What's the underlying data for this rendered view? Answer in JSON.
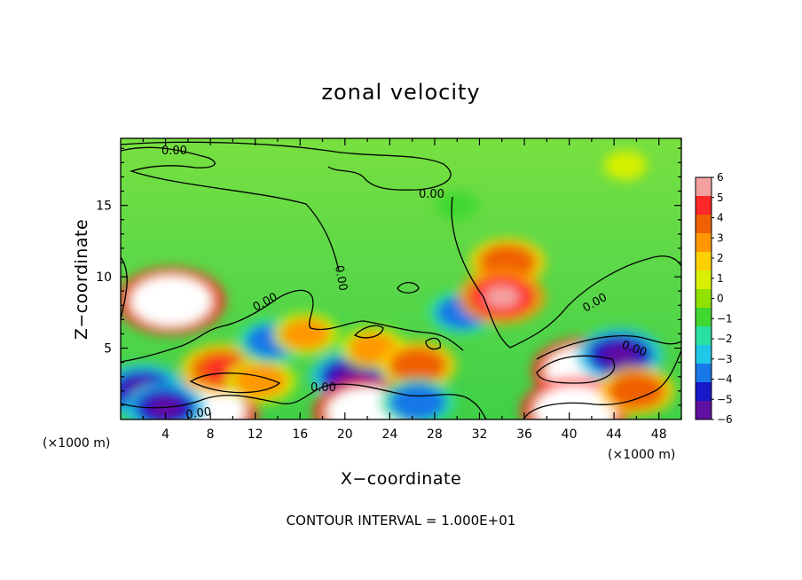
{
  "chart_data": {
    "type": "heatmap",
    "title": "zonal velocity",
    "xlabel": "X−coordinate",
    "ylabel": "Z−coordinate",
    "x_unit_left": "(×1000 m)",
    "x_unit_right": "(×1000 m)",
    "footer": "CONTOUR INTERVAL = 1.000E+01",
    "xlim": [
      0,
      50
    ],
    "ylim": [
      0,
      19.7
    ],
    "x_ticks": [
      4,
      8,
      12,
      16,
      20,
      24,
      28,
      32,
      36,
      40,
      44,
      48
    ],
    "x_tick_labels": [
      "4",
      "8",
      "12",
      "16",
      "20",
      "24",
      "28",
      "32",
      "36",
      "40",
      "44",
      "48"
    ],
    "y_ticks": [
      5,
      10,
      15
    ],
    "y_tick_labels": [
      "5",
      "10",
      "15"
    ],
    "colorbar": {
      "range": [
        -6,
        6
      ],
      "labels": [
        "6",
        "5",
        "4",
        "3",
        "2",
        "1",
        "0",
        "−1",
        "−2",
        "−3",
        "−4",
        "−5",
        "−6"
      ],
      "colors": [
        "#f4a0a0",
        "#ff2828",
        "#f06000",
        "#ff9800",
        "#ffd000",
        "#d8f000",
        "#90e000",
        "#40d830",
        "#28e0a0",
        "#20c8e8",
        "#1878e8",
        "#1818c8",
        "#6010a0"
      ]
    },
    "contour_labels": [
      "0.00",
      "0.00",
      "0.00",
      "0.00",
      "0.00",
      "0.00",
      "0.00",
      "0.00"
    ],
    "features": [
      {
        "x": 4.5,
        "z": 8.3,
        "value": 7.0
      },
      {
        "x": 7.5,
        "z": 0.6,
        "value": 7.0
      },
      {
        "x": 9.0,
        "z": 3.5,
        "value": 4.5
      },
      {
        "x": 12.5,
        "z": 2.7,
        "value": 3.5
      },
      {
        "x": 2.0,
        "z": 2.0,
        "value": -5.0
      },
      {
        "x": 4.0,
        "z": 0.8,
        "value": -4.5
      },
      {
        "x": 13.5,
        "z": 5.5,
        "value": -3.5
      },
      {
        "x": 16.5,
        "z": 6.0,
        "value": 3.0
      },
      {
        "x": 20.5,
        "z": 3.0,
        "value": -4.5
      },
      {
        "x": 22.5,
        "z": 5.0,
        "value": 3.0
      },
      {
        "x": 22.0,
        "z": 0.5,
        "value": 7.0
      },
      {
        "x": 26.5,
        "z": 3.8,
        "value": 4.0
      },
      {
        "x": 26.5,
        "z": 1.2,
        "value": -4.0
      },
      {
        "x": 30.5,
        "z": 7.5,
        "value": -3.5
      },
      {
        "x": 34.5,
        "z": 11.0,
        "value": 4.0
      },
      {
        "x": 34.0,
        "z": 8.6,
        "value": 5.0
      },
      {
        "x": 41.5,
        "z": 3.4,
        "value": 7.0
      },
      {
        "x": 44.5,
        "z": 4.5,
        "value": -5.0
      },
      {
        "x": 40.5,
        "z": 0.6,
        "value": 7.0
      },
      {
        "x": 46.0,
        "z": 2.0,
        "value": 4.0
      },
      {
        "x": 45.0,
        "z": 17.8,
        "value": 1.0
      },
      {
        "x": 30.0,
        "z": 15.0,
        "value": -1.0
      }
    ]
  }
}
